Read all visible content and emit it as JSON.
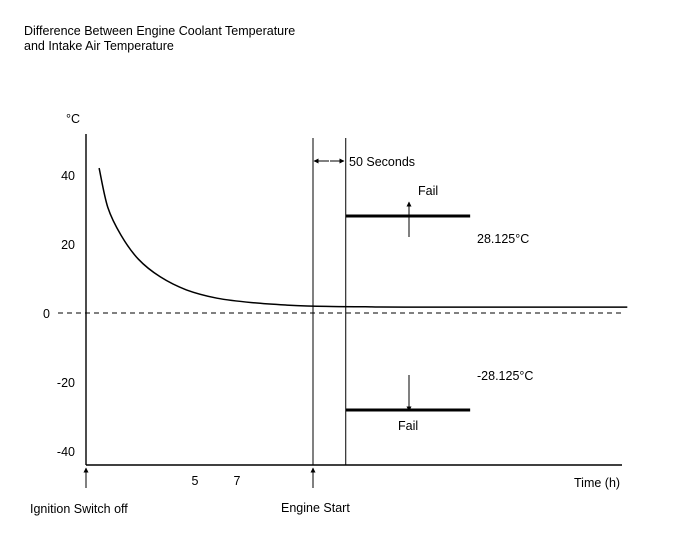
{
  "title_lines": [
    "Difference Between Engine Coolant Temperature",
    "and Intake Air Temperature"
  ],
  "chart_data": {
    "type": "line",
    "ylabel": "°C",
    "xlabel": "Time (h)",
    "yticks": [
      40,
      20,
      0,
      -20,
      -40
    ],
    "ytick_labels": [
      "40",
      "20",
      "0",
      "-20",
      "-40"
    ],
    "xticks": [
      5,
      7
    ],
    "xtick_labels": [
      "5",
      "7"
    ],
    "ylim": [
      -50,
      53
    ],
    "xlim": [
      0,
      12.4
    ],
    "grid": false,
    "series": [
      {
        "x": [
          0.3,
          0.5,
          0.8,
          1.2,
          1.7,
          2.3,
          3.0,
          3.8,
          4.6,
          5.5,
          6.4,
          7.3,
          12.4
        ],
        "y": [
          42,
          30.6,
          22.6,
          15.6,
          10.5,
          6.7,
          4.3,
          3.0,
          2.3,
          1.9,
          1.8,
          1.7,
          1.7
        ]
      }
    ],
    "reference_line": {
      "y": 0,
      "style": "dashed"
    },
    "events": [
      {
        "label": "Ignition Switch off",
        "x": 0
      },
      {
        "label": "Engine Start",
        "x": 5.2
      }
    ],
    "interval_label": "50 Seconds",
    "thresholds": [
      {
        "value_label": "28.125°C",
        "y": 28.125,
        "fail_label": "Fail",
        "fail_direction": "up"
      },
      {
        "value_label": "-28.125°C",
        "y": -28.125,
        "fail_label": "Fail",
        "fail_direction": "down"
      }
    ],
    "threshold_start_x": 5.95,
    "threshold_end_x": 8.8
  }
}
